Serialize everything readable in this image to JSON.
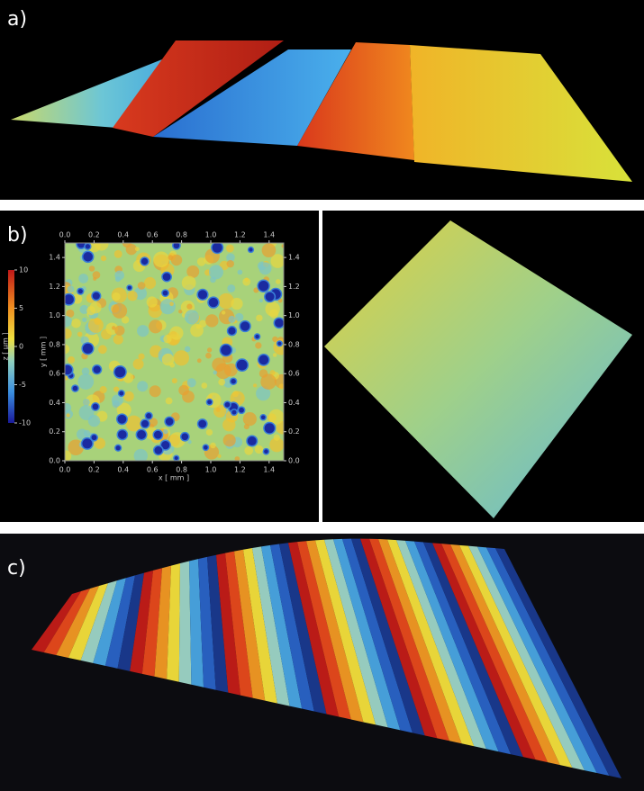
{
  "panels": [
    {
      "label": "a)"
    },
    {
      "label": "b)"
    },
    {
      "label": "c)"
    }
  ],
  "map": {
    "x_label": "x [ mm ]",
    "y_label": "y [ mm ]",
    "xlim": [
      0,
      1.5
    ],
    "ylim": [
      0,
      1.5
    ],
    "xticks": [
      {
        "value": 0,
        "label": "0.0"
      },
      {
        "value": 0.2,
        "label": "0.2"
      },
      {
        "value": 0.4,
        "label": "0.4"
      },
      {
        "value": 0.6,
        "label": "0.6"
      },
      {
        "value": 0.8,
        "label": "0.8"
      },
      {
        "value": 1,
        "label": "1.0"
      },
      {
        "value": 1.2,
        "label": "1.2"
      },
      {
        "value": 1.4,
        "label": "1.4"
      }
    ],
    "yticks": [
      {
        "value": 0,
        "label": "0.0"
      },
      {
        "value": 0.2,
        "label": "0.2"
      },
      {
        "value": 0.4,
        "label": "0.4"
      },
      {
        "value": 0.6,
        "label": "0.6"
      },
      {
        "value": 0.8,
        "label": "0.8"
      },
      {
        "value": 1,
        "label": "1.0"
      },
      {
        "value": 1.2,
        "label": "1.2"
      },
      {
        "value": 1.4,
        "label": "1.4"
      }
    ],
    "colorbar": {
      "label": "z [ µm ]",
      "lim": [
        -10,
        10
      ],
      "ticks": [
        -10,
        -5,
        0,
        5,
        10
      ]
    }
  }
}
